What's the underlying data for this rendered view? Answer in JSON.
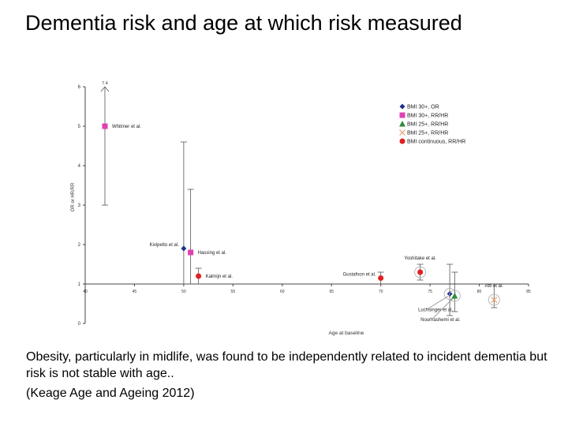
{
  "slide": {
    "title": "Dementia risk and age at which risk measured",
    "caption": "Obesity, particularly in midlife, was found to be independently related to incident dementia but risk is not stable with age..",
    "reference": "(Keage Age and Ageing 2012)"
  },
  "chart_data": {
    "type": "scatter",
    "xlabel": "Age at baseline",
    "ylabel": "OR or HR/RR",
    "xlim": [
      40,
      85
    ],
    "ylim": [
      0,
      6
    ],
    "x_ticks": [
      "40",
      "45",
      "50",
      "55",
      "60",
      "65",
      "70",
      "75",
      "80",
      "85"
    ],
    "y_ticks": [
      "0",
      "1",
      "2",
      "3",
      "4",
      "5",
      "6"
    ],
    "reference_line_y": 1,
    "grid": false,
    "legend_position": "top-right",
    "legend": [
      {
        "label": "BMI 30+, OR",
        "color": "#1f2f8a",
        "marker": "diamond"
      },
      {
        "label": "BMI 30+, RR/HR",
        "color": "#e040b0",
        "marker": "square"
      },
      {
        "label": "BMI 25+, RR/HR",
        "color": "#2e8b3a",
        "marker": "triangle"
      },
      {
        "label": "BMI 25+, RR/HR",
        "color": "#e8a070",
        "marker": "x"
      },
      {
        "label": "BMI continuous, RR/HR",
        "color": "#e02020",
        "marker": "circle"
      }
    ],
    "points": [
      {
        "label": "Whitmer et al.",
        "x": 42,
        "y": 5.0,
        "lo": 3.0,
        "hi": 6.0,
        "color": "#e040b0",
        "marker": "square",
        "arrow": true,
        "hi_label": "7.4",
        "label_side": "right"
      },
      {
        "label": "Kivipelto et al.",
        "x": 50,
        "y": 1.9,
        "lo": 1.0,
        "hi": 4.6,
        "color": "#1f2f8a",
        "marker": "diamond",
        "arrow": false,
        "label_side": "left"
      },
      {
        "label": "Hassing et al.",
        "x": 50.7,
        "y": 1.8,
        "lo": 1.0,
        "hi": 3.4,
        "color": "#e040b0",
        "marker": "square",
        "arrow": false,
        "label_side": "right"
      },
      {
        "label": "Kalmijn et al.",
        "x": 51.5,
        "y": 1.2,
        "lo": 1.0,
        "hi": 1.4,
        "color": "#e02020",
        "marker": "circle",
        "arrow": false,
        "label_side": "right"
      },
      {
        "label": "Gustafson et al.",
        "x": 70,
        "y": 1.15,
        "lo": 1.0,
        "hi": 1.3,
        "color": "#e02020",
        "marker": "circle",
        "arrow": false,
        "label_side": "left"
      },
      {
        "label": "Yoshitake et al.",
        "x": 74,
        "y": 1.3,
        "lo": 1.1,
        "hi": 1.5,
        "color": "#e02020",
        "marker": "circle",
        "arrow": false,
        "label_side": "above"
      },
      {
        "label": "Luchsinger et al.",
        "x": 77,
        "y": 0.75,
        "lo": 0.2,
        "hi": 1.5,
        "color": "#1f2f8a",
        "marker": "diamond",
        "arrow": false,
        "label_side": "below"
      },
      {
        "label": "Nourhashemi et al.",
        "x": 77.5,
        "y": 0.7,
        "lo": 0.3,
        "hi": 1.3,
        "color": "#2e8b3a",
        "marker": "triangle",
        "arrow": false,
        "label_side": "below"
      },
      {
        "label": "Atti et al.",
        "x": 81.5,
        "y": 0.6,
        "lo": 0.4,
        "hi": 1.0,
        "color": "#e8a070",
        "marker": "x",
        "arrow": false,
        "label_side": "above"
      }
    ]
  }
}
